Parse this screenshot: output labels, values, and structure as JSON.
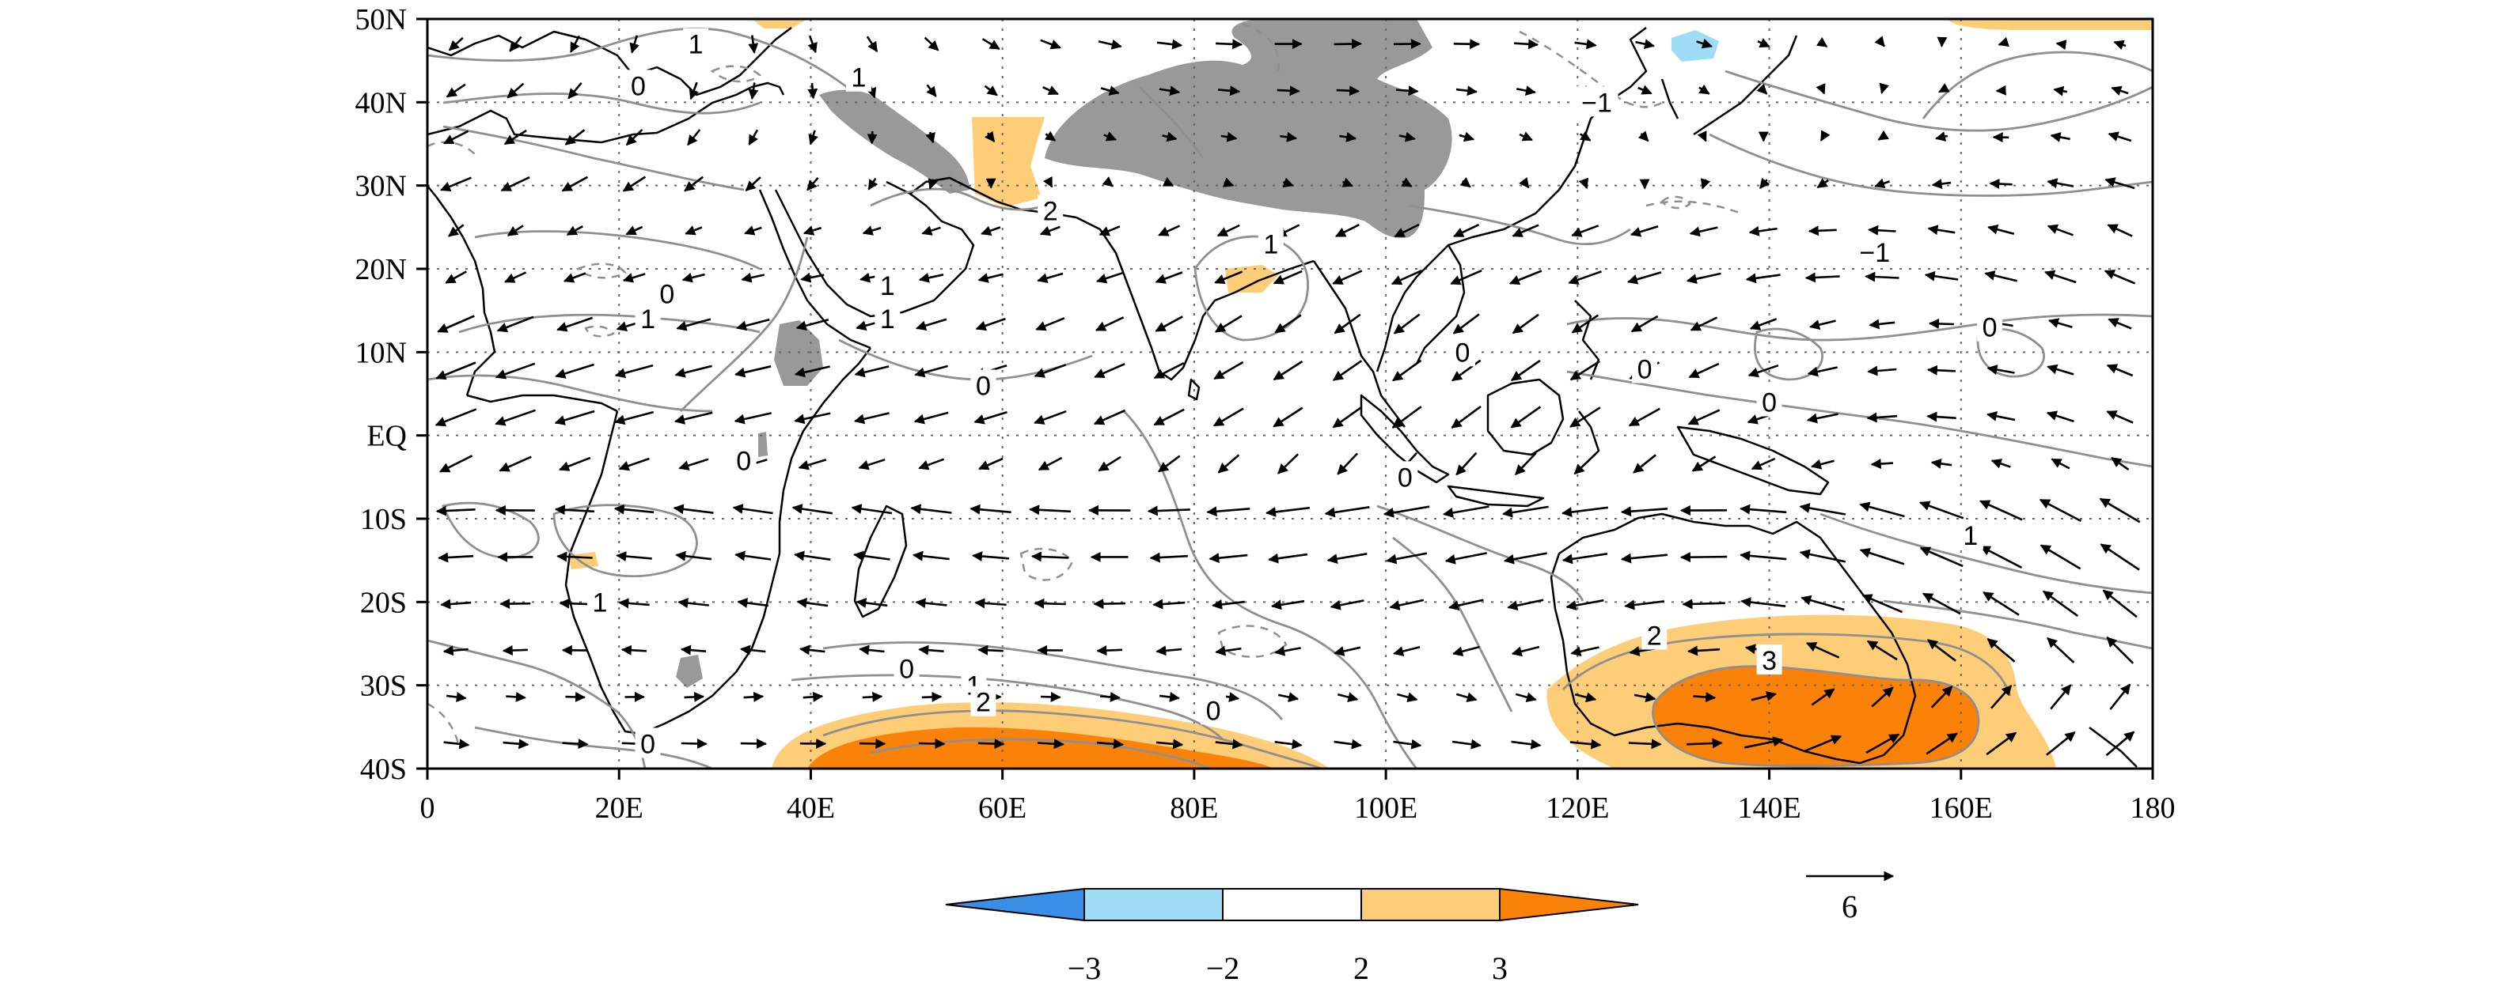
{
  "map": {
    "x_range": [
      0,
      180
    ],
    "y_range": [
      -40,
      50
    ],
    "x_ticks": [
      {
        "value": 0,
        "label": "0"
      },
      {
        "value": 20,
        "label": "20E"
      },
      {
        "value": 40,
        "label": "40E"
      },
      {
        "value": 60,
        "label": "60E"
      },
      {
        "value": 80,
        "label": "80E"
      },
      {
        "value": 100,
        "label": "100E"
      },
      {
        "value": 120,
        "label": "120E"
      },
      {
        "value": 140,
        "label": "140E"
      },
      {
        "value": 160,
        "label": "160E"
      },
      {
        "value": 180,
        "label": "180"
      }
    ],
    "y_ticks": [
      {
        "value": 50,
        "label": "50N"
      },
      {
        "value": 40,
        "label": "40N"
      },
      {
        "value": 30,
        "label": "30N"
      },
      {
        "value": 20,
        "label": "20N"
      },
      {
        "value": 10,
        "label": "10N"
      },
      {
        "value": 0,
        "label": "EQ"
      },
      {
        "value": -10,
        "label": "10S"
      },
      {
        "value": -20,
        "label": "20S"
      },
      {
        "value": -30,
        "label": "30S"
      },
      {
        "value": -40,
        "label": "40S"
      }
    ],
    "grid": true,
    "shading_colors": {
      "lt_neg3": "#3b8ee6",
      "neg3_neg2": "#9fdcf6",
      "neg2_2": "#ffffff",
      "2_3": "#fdcd78",
      "gt3": "#fb8208",
      "terrain_mask": "#999999"
    },
    "contour_color": "#8f8f8f",
    "contour_labels": [
      {
        "text": "1",
        "lon": 28,
        "lat": 47
      },
      {
        "text": "0",
        "lon": 22,
        "lat": 42
      },
      {
        "text": "1",
        "lon": 45,
        "lat": 43
      },
      {
        "text": "2",
        "lon": 65,
        "lat": 27
      },
      {
        "text": "-1",
        "lon": 122,
        "lat": 40
      },
      {
        "text": "-1",
        "lon": 151,
        "lat": 22
      },
      {
        "text": "1",
        "lon": 88,
        "lat": 23
      },
      {
        "text": "0",
        "lon": 25,
        "lat": 17
      },
      {
        "text": "1",
        "lon": 23,
        "lat": 14
      },
      {
        "text": "1",
        "lon": 48,
        "lat": 18
      },
      {
        "text": "1",
        "lon": 48,
        "lat": 14
      },
      {
        "text": "0",
        "lon": 58,
        "lat": 6
      },
      {
        "text": "0",
        "lon": 108,
        "lat": 10
      },
      {
        "text": "0",
        "lon": 127,
        "lat": 8
      },
      {
        "text": "0",
        "lon": 163,
        "lat": 13
      },
      {
        "text": "0",
        "lon": 140,
        "lat": 4
      },
      {
        "text": "0",
        "lon": 33,
        "lat": -3
      },
      {
        "text": "0",
        "lon": 102,
        "lat": -5
      },
      {
        "text": "1",
        "lon": 161,
        "lat": -12
      },
      {
        "text": "1",
        "lon": 18,
        "lat": -20
      },
      {
        "text": "0",
        "lon": 50,
        "lat": -28
      },
      {
        "text": "1",
        "lon": 57,
        "lat": -30
      },
      {
        "text": "2",
        "lon": 58,
        "lat": -32
      },
      {
        "text": "0",
        "lon": 82,
        "lat": -33
      },
      {
        "text": "0",
        "lon": 23,
        "lat": -37
      },
      {
        "text": "2",
        "lon": 128,
        "lat": -24
      },
      {
        "text": "3",
        "lon": 140,
        "lat": -27
      }
    ]
  },
  "colorbar": {
    "labels": [
      "−3",
      "−2",
      "2",
      "3"
    ],
    "colors": [
      "#3b8ee6",
      "#9fdcf6",
      "#ffffff",
      "#fdcd78",
      "#fb8208"
    ]
  },
  "reference_vector": {
    "label": "6"
  }
}
